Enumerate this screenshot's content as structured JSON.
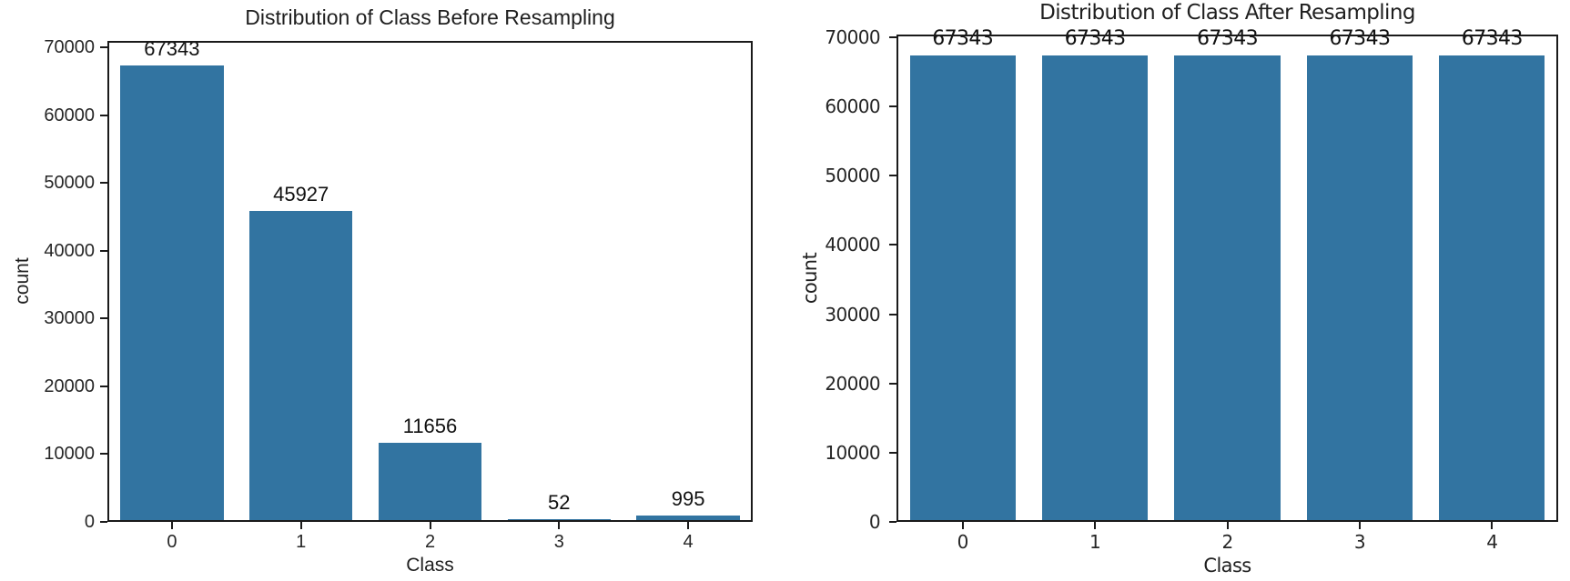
{
  "chart_data": [
    {
      "type": "bar",
      "title": "Distribution of Class Before Resampling",
      "xlabel": "Class",
      "ylabel": "count",
      "categories": [
        "0",
        "1",
        "2",
        "3",
        "4"
      ],
      "values": [
        67343,
        45927,
        11656,
        52,
        995
      ],
      "bar_labels": [
        "67343",
        "45927",
        "11656",
        "52",
        "995"
      ],
      "yticks": [
        0,
        10000,
        20000,
        30000,
        40000,
        50000,
        60000,
        70000
      ],
      "ytick_labels": [
        "0",
        "10000",
        "20000",
        "30000",
        "40000",
        "50000",
        "60000",
        "70000"
      ],
      "ylim": [
        0,
        71000
      ],
      "bar_color": "#3274A1",
      "grid": false,
      "legend": null
    },
    {
      "type": "bar",
      "title": "Distribution of Class After Resampling",
      "xlabel": "Class",
      "ylabel": "count",
      "categories": [
        "0",
        "1",
        "2",
        "3",
        "4"
      ],
      "values": [
        67343,
        67343,
        67343,
        67343,
        67343
      ],
      "bar_labels": [
        "67343",
        "67343",
        "67343",
        "67343",
        "67343"
      ],
      "yticks": [
        0,
        10000,
        20000,
        30000,
        40000,
        50000,
        60000,
        70000
      ],
      "ytick_labels": [
        "0",
        "10000",
        "20000",
        "30000",
        "40000",
        "50000",
        "60000",
        "70000"
      ],
      "ylim": [
        0,
        70400
      ],
      "bar_color": "#3274A1",
      "grid": false,
      "legend": null
    }
  ]
}
